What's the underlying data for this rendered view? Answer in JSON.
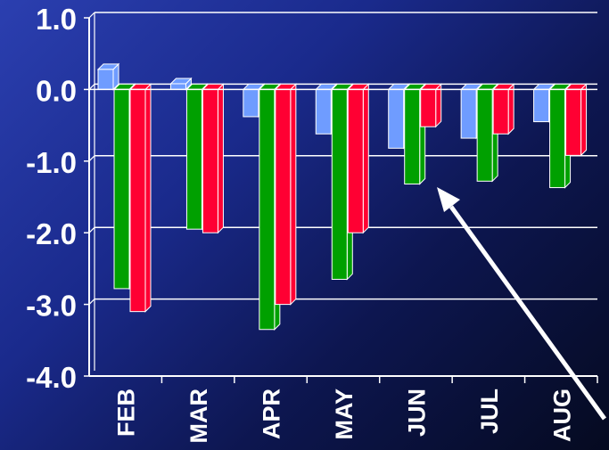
{
  "chart_data": {
    "type": "bar",
    "categories": [
      "FEB",
      "MAR",
      "APR",
      "MAY",
      "JUN",
      "JUL",
      "AUG"
    ],
    "series": [
      {
        "color": "#6f9cff",
        "values": [
          0.28,
          0.08,
          -0.38,
          -0.62,
          -0.82,
          -0.68,
          -0.45
        ]
      },
      {
        "color": "#00a000",
        "values": [
          -2.78,
          -1.95,
          -3.35,
          -2.65,
          -1.32,
          -1.28,
          -1.37
        ]
      },
      {
        "color": "#ff0033",
        "values": [
          -3.1,
          -2.0,
          -3.0,
          -2.0,
          -0.52,
          -0.62,
          -0.92
        ]
      }
    ],
    "ylim": [
      -4.0,
      1.0
    ],
    "yticks": [
      {
        "value": 1.0,
        "label": "1.0"
      },
      {
        "value": 0.0,
        "label": "0.0"
      },
      {
        "value": -1.0,
        "label": "-1.0"
      },
      {
        "value": -2.0,
        "label": "-2.0"
      },
      {
        "value": -3.0,
        "label": "-3.0"
      },
      {
        "value": -4.0,
        "label": "-4.0"
      }
    ],
    "grid": true,
    "title": "",
    "xlabel": "",
    "ylabel": "",
    "annotation": "arrow pointing to JUN/JUL region"
  }
}
